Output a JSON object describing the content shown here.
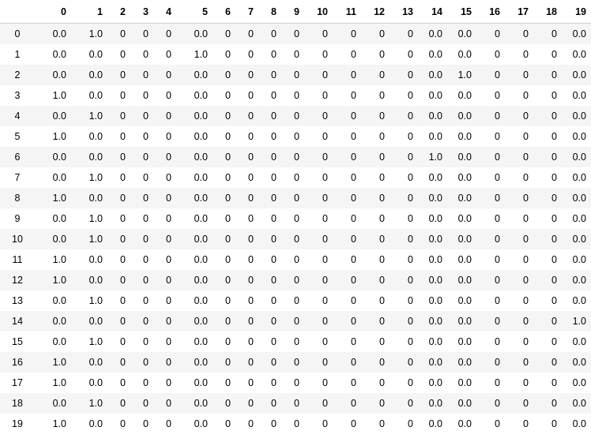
{
  "table": {
    "columns": [
      "",
      "0",
      "1",
      "2",
      "3",
      "4",
      "5",
      "6",
      "7",
      "8",
      "9",
      "10",
      "11",
      "12",
      "13",
      "14",
      "15",
      "16",
      "17",
      "18",
      "19"
    ],
    "rows": [
      {
        "index": "0",
        "cells": [
          "0.0",
          "1.0",
          "0",
          "0",
          "0",
          "0.0",
          "0",
          "0",
          "0",
          "0",
          "0",
          "0",
          "0",
          "0",
          "0.0",
          "0.0",
          "0",
          "0",
          "0",
          "0.0"
        ]
      },
      {
        "index": "1",
        "cells": [
          "0.0",
          "0.0",
          "0",
          "0",
          "0",
          "1.0",
          "0",
          "0",
          "0",
          "0",
          "0",
          "0",
          "0",
          "0",
          "0.0",
          "0.0",
          "0",
          "0",
          "0",
          "0.0"
        ]
      },
      {
        "index": "2",
        "cells": [
          "0.0",
          "0.0",
          "0",
          "0",
          "0",
          "0.0",
          "0",
          "0",
          "0",
          "0",
          "0",
          "0",
          "0",
          "0",
          "0.0",
          "1.0",
          "0",
          "0",
          "0",
          "0.0"
        ]
      },
      {
        "index": "3",
        "cells": [
          "1.0",
          "0.0",
          "0",
          "0",
          "0",
          "0.0",
          "0",
          "0",
          "0",
          "0",
          "0",
          "0",
          "0",
          "0",
          "0.0",
          "0.0",
          "0",
          "0",
          "0",
          "0.0"
        ]
      },
      {
        "index": "4",
        "cells": [
          "0.0",
          "1.0",
          "0",
          "0",
          "0",
          "0.0",
          "0",
          "0",
          "0",
          "0",
          "0",
          "0",
          "0",
          "0",
          "0.0",
          "0.0",
          "0",
          "0",
          "0",
          "0.0"
        ]
      },
      {
        "index": "5",
        "cells": [
          "1.0",
          "0.0",
          "0",
          "0",
          "0",
          "0.0",
          "0",
          "0",
          "0",
          "0",
          "0",
          "0",
          "0",
          "0",
          "0.0",
          "0.0",
          "0",
          "0",
          "0",
          "0.0"
        ]
      },
      {
        "index": "6",
        "cells": [
          "0.0",
          "0.0",
          "0",
          "0",
          "0",
          "0.0",
          "0",
          "0",
          "0",
          "0",
          "0",
          "0",
          "0",
          "0",
          "1.0",
          "0.0",
          "0",
          "0",
          "0",
          "0.0"
        ]
      },
      {
        "index": "7",
        "cells": [
          "0.0",
          "1.0",
          "0",
          "0",
          "0",
          "0.0",
          "0",
          "0",
          "0",
          "0",
          "0",
          "0",
          "0",
          "0",
          "0.0",
          "0.0",
          "0",
          "0",
          "0",
          "0.0"
        ]
      },
      {
        "index": "8",
        "cells": [
          "1.0",
          "0.0",
          "0",
          "0",
          "0",
          "0.0",
          "0",
          "0",
          "0",
          "0",
          "0",
          "0",
          "0",
          "0",
          "0.0",
          "0.0",
          "0",
          "0",
          "0",
          "0.0"
        ]
      },
      {
        "index": "9",
        "cells": [
          "0.0",
          "1.0",
          "0",
          "0",
          "0",
          "0.0",
          "0",
          "0",
          "0",
          "0",
          "0",
          "0",
          "0",
          "0",
          "0.0",
          "0.0",
          "0",
          "0",
          "0",
          "0.0"
        ]
      },
      {
        "index": "10",
        "cells": [
          "0.0",
          "1.0",
          "0",
          "0",
          "0",
          "0.0",
          "0",
          "0",
          "0",
          "0",
          "0",
          "0",
          "0",
          "0",
          "0.0",
          "0.0",
          "0",
          "0",
          "0",
          "0.0"
        ]
      },
      {
        "index": "11",
        "cells": [
          "1.0",
          "0.0",
          "0",
          "0",
          "0",
          "0.0",
          "0",
          "0",
          "0",
          "0",
          "0",
          "0",
          "0",
          "0",
          "0.0",
          "0.0",
          "0",
          "0",
          "0",
          "0.0"
        ]
      },
      {
        "index": "12",
        "cells": [
          "1.0",
          "0.0",
          "0",
          "0",
          "0",
          "0.0",
          "0",
          "0",
          "0",
          "0",
          "0",
          "0",
          "0",
          "0",
          "0.0",
          "0.0",
          "0",
          "0",
          "0",
          "0.0"
        ]
      },
      {
        "index": "13",
        "cells": [
          "0.0",
          "1.0",
          "0",
          "0",
          "0",
          "0.0",
          "0",
          "0",
          "0",
          "0",
          "0",
          "0",
          "0",
          "0",
          "0.0",
          "0.0",
          "0",
          "0",
          "0",
          "0.0"
        ]
      },
      {
        "index": "14",
        "cells": [
          "0.0",
          "0.0",
          "0",
          "0",
          "0",
          "0.0",
          "0",
          "0",
          "0",
          "0",
          "0",
          "0",
          "0",
          "0",
          "0.0",
          "0.0",
          "0",
          "0",
          "0",
          "1.0"
        ]
      },
      {
        "index": "15",
        "cells": [
          "0.0",
          "1.0",
          "0",
          "0",
          "0",
          "0.0",
          "0",
          "0",
          "0",
          "0",
          "0",
          "0",
          "0",
          "0",
          "0.0",
          "0.0",
          "0",
          "0",
          "0",
          "0.0"
        ]
      },
      {
        "index": "16",
        "cells": [
          "1.0",
          "0.0",
          "0",
          "0",
          "0",
          "0.0",
          "0",
          "0",
          "0",
          "0",
          "0",
          "0",
          "0",
          "0",
          "0.0",
          "0.0",
          "0",
          "0",
          "0",
          "0.0"
        ]
      },
      {
        "index": "17",
        "cells": [
          "1.0",
          "0.0",
          "0",
          "0",
          "0",
          "0.0",
          "0",
          "0",
          "0",
          "0",
          "0",
          "0",
          "0",
          "0",
          "0.0",
          "0.0",
          "0",
          "0",
          "0",
          "0.0"
        ]
      },
      {
        "index": "18",
        "cells": [
          "0.0",
          "1.0",
          "0",
          "0",
          "0",
          "0.0",
          "0",
          "0",
          "0",
          "0",
          "0",
          "0",
          "0",
          "0",
          "0.0",
          "0.0",
          "0",
          "0",
          "0",
          "0.0"
        ]
      },
      {
        "index": "19",
        "cells": [
          "1.0",
          "0.0",
          "0",
          "0",
          "0",
          "0.0",
          "0",
          "0",
          "0",
          "0",
          "0",
          "0",
          "0",
          "0",
          "0.0",
          "0.0",
          "0",
          "0",
          "0",
          "0.0"
        ]
      }
    ]
  }
}
